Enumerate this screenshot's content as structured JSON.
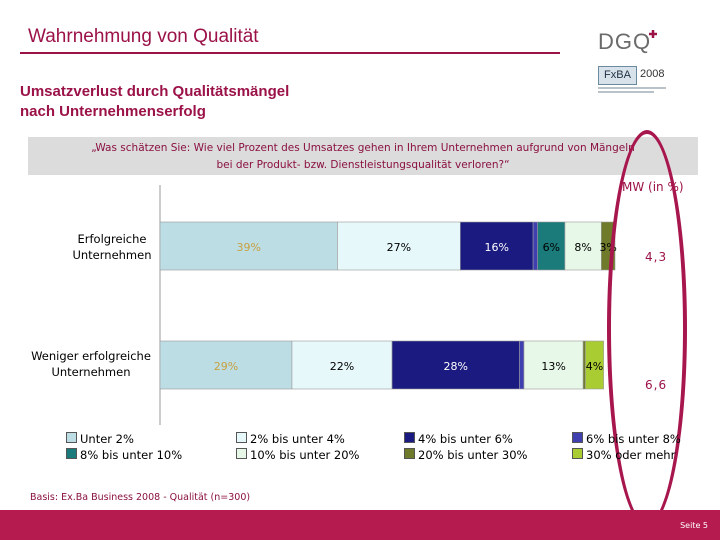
{
  "header": {
    "title": "Wahrnehmung von Qualität",
    "logo_text": "DGQ",
    "fxba_text": "FxBA",
    "fxba_year": "2008"
  },
  "subtitle_line1": "Umsatzverlust durch Qualitätsmängel",
  "subtitle_line2": "nach Unternehmenserfolg",
  "question_line1": "„Was schätzen Sie: Wie viel Prozent des Umsatzes gehen in Ihrem Unternehmen aufgrund von Mängeln",
  "question_line2": "bei der Produkt- bzw. Dienstleistungsqualität verloren?“",
  "mw": {
    "label": "MW (in %)",
    "values": [
      "4,3",
      "6,6"
    ]
  },
  "basis": "Basis: Ex.Ba Business 2008 - Qualität (n=300)",
  "footer": {
    "page": "Seite 5"
  },
  "chart_data": {
    "type": "bar",
    "orientation": "horizontal",
    "stacked": true,
    "categories": [
      [
        "Erfolgreiche",
        "Unternehmen"
      ],
      [
        "Weniger erfolgreiche",
        "Unternehmen"
      ]
    ],
    "series": [
      {
        "name": "Unter 2%",
        "color": "#bcdde4",
        "values": [
          39,
          29
        ],
        "labels": [
          "39%",
          "29%"
        ]
      },
      {
        "name": "2% bis unter 4%",
        "color": "#e6f8fa",
        "values": [
          27,
          22
        ],
        "labels": [
          "27%",
          "22%"
        ]
      },
      {
        "name": "4% bis unter 6%",
        "color": "#1a1a80",
        "values": [
          16,
          28
        ],
        "labels": [
          "16%",
          "28%"
        ]
      },
      {
        "name": "6% bis unter 8%",
        "color": "#3f3fb0",
        "values": [
          1,
          1
        ],
        "labels": [
          "",
          ""
        ]
      },
      {
        "name": "8% bis unter 10%",
        "color": "#1b7a7a",
        "values": [
          6,
          0
        ],
        "labels": [
          "6%",
          ""
        ]
      },
      {
        "name": "10% bis unter 20%",
        "color": "#e8f8e8",
        "values": [
          8,
          13
        ],
        "labels": [
          "8%",
          "13%"
        ]
      },
      {
        "name": "20% bis unter 30%",
        "color": "#6f7a2a",
        "values": [
          3,
          0.5
        ],
        "labels": [
          "3%",
          ""
        ]
      },
      {
        "name": "30% oder mehr",
        "color": "#aacc33",
        "values": [
          0,
          4
        ],
        "labels": [
          "",
          "4%"
        ]
      }
    ],
    "label_colors": [
      "#c8a040",
      "#000000",
      "#ffffff",
      "#ffffff",
      "#000000",
      "#000000",
      "#000000",
      "#000000"
    ],
    "xlim": [
      0,
      100
    ],
    "grid": false,
    "legend_position": "bottom"
  }
}
